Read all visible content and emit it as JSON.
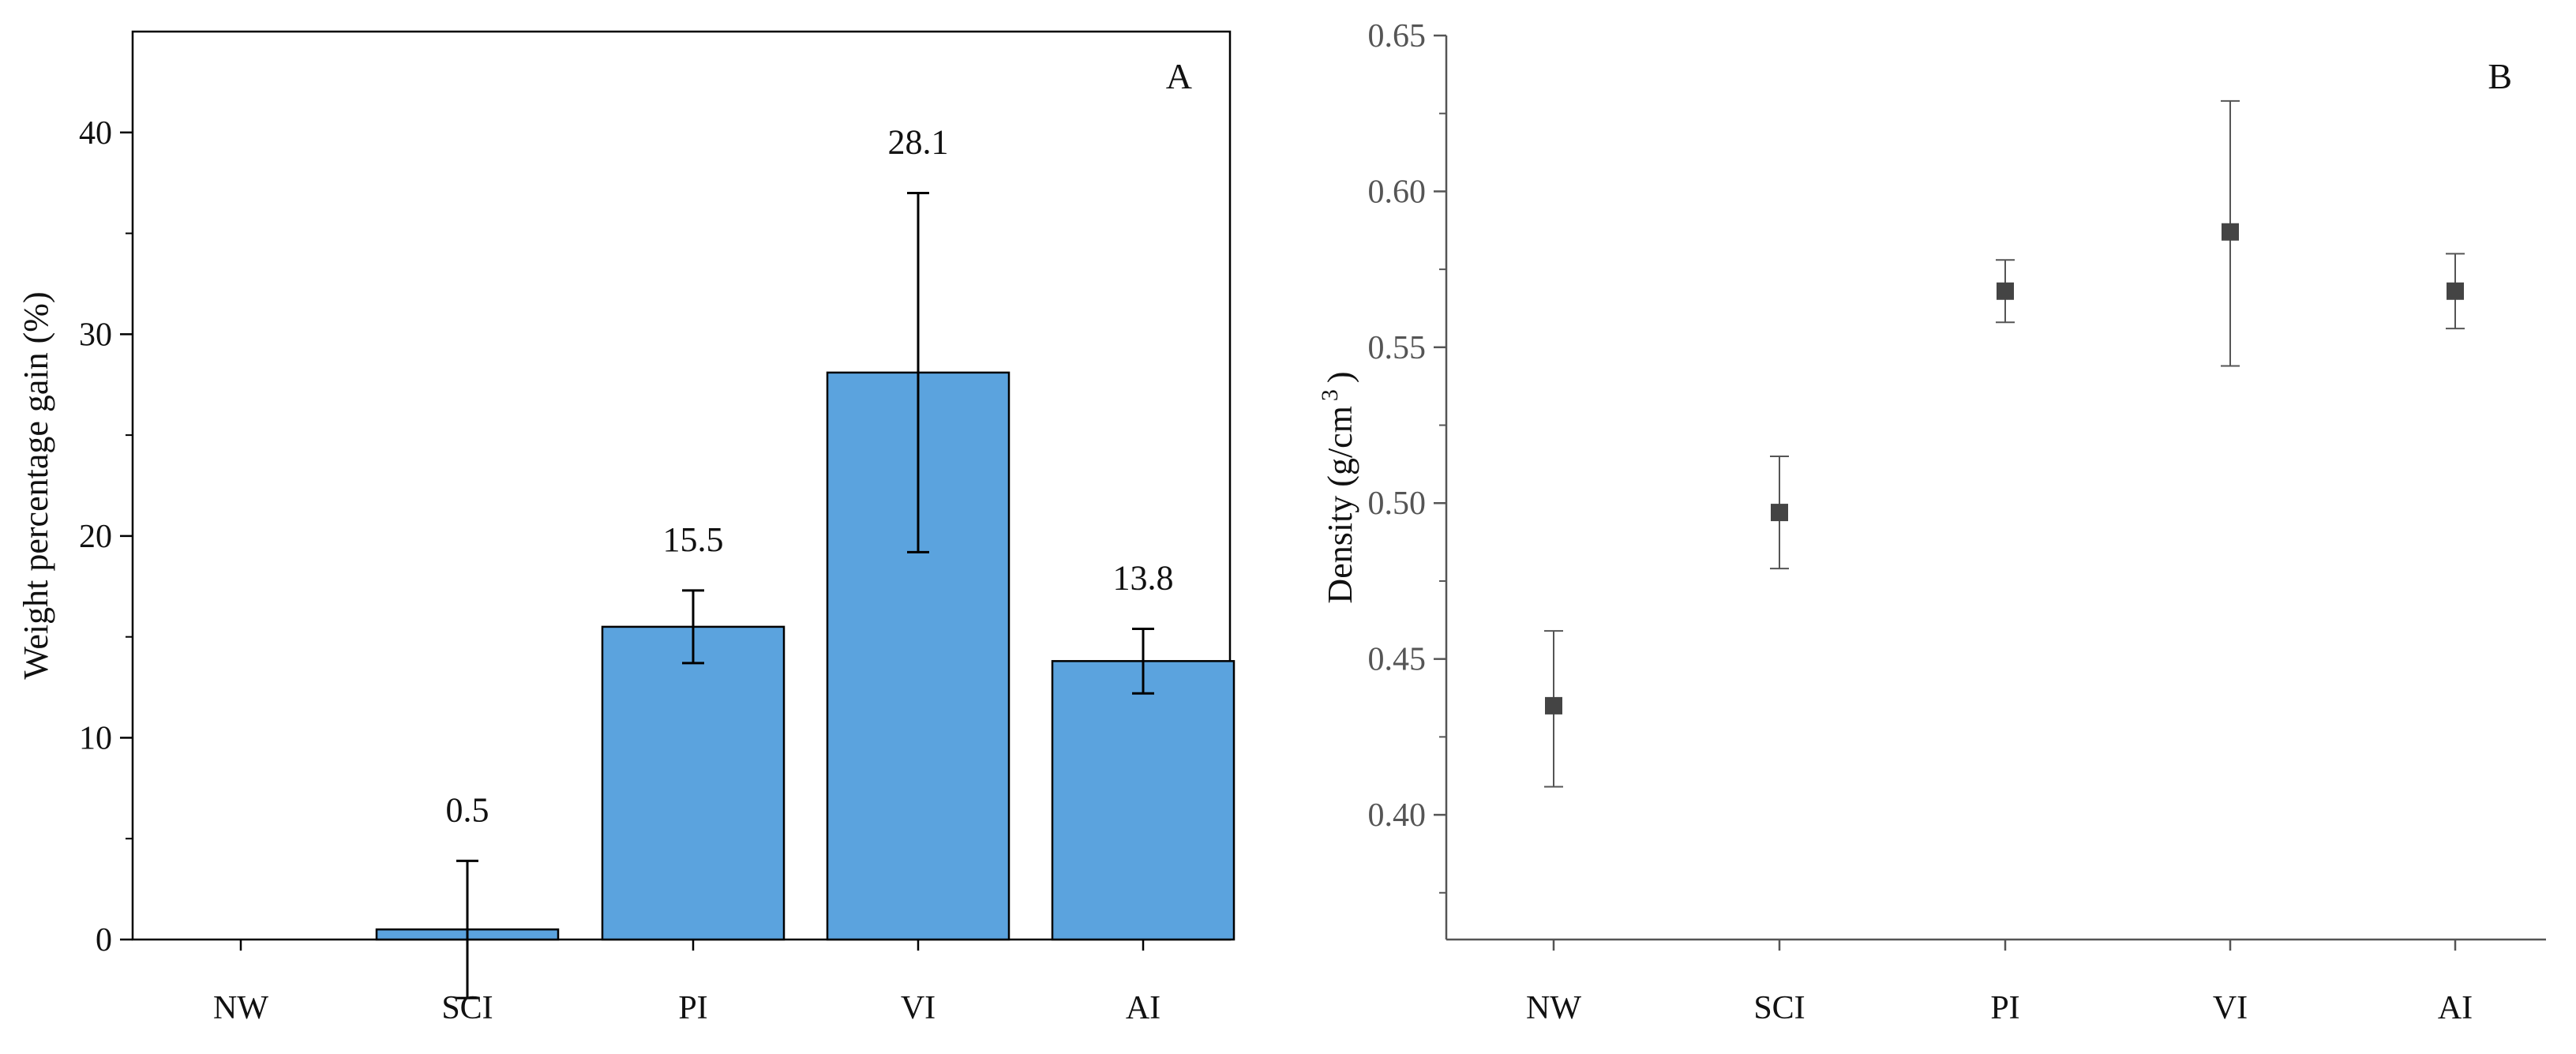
{
  "chart_data": [
    {
      "type": "bar",
      "panel": "A",
      "title": "",
      "xlabel": "",
      "ylabel": "Weight percentage gain (%)",
      "categories": [
        "NW",
        "SCI",
        "PI",
        "VI",
        "AI"
      ],
      "values": [
        0,
        0.5,
        15.5,
        28.1,
        13.8
      ],
      "errors": [
        0,
        3.4,
        1.8,
        8.9,
        1.6
      ],
      "data_labels": [
        "",
        "0.5",
        "15.5",
        "28.1",
        "13.8"
      ],
      "ylim": [
        0,
        45
      ],
      "yticks": [
        0,
        10,
        20,
        30,
        40
      ],
      "ytick_labels": [
        "0",
        "10",
        "20",
        "30",
        "40"
      ],
      "bar_color": "#5ba3de",
      "grid": false
    },
    {
      "type": "scatter",
      "panel": "B",
      "title": "",
      "xlabel": "",
      "ylabel_main": "Density (g/cm",
      "ylabel_sup": "3",
      "ylabel_close": ")",
      "categories": [
        "NW",
        "SCI",
        "PI",
        "VI",
        "AI"
      ],
      "values": [
        0.435,
        0.497,
        0.568,
        0.587,
        0.568
      ],
      "err_low": [
        0.409,
        0.479,
        0.558,
        0.544,
        0.556
      ],
      "err_high": [
        0.459,
        0.515,
        0.578,
        0.629,
        0.58
      ],
      "ylim": [
        0.36,
        0.65
      ],
      "yticks": [
        0.4,
        0.45,
        0.5,
        0.55,
        0.6,
        0.65
      ],
      "ytick_labels": [
        "0.40",
        "0.45",
        "0.50",
        "0.55",
        "0.60",
        "0.65"
      ],
      "marker_color": "#444444",
      "grid": false
    }
  ]
}
